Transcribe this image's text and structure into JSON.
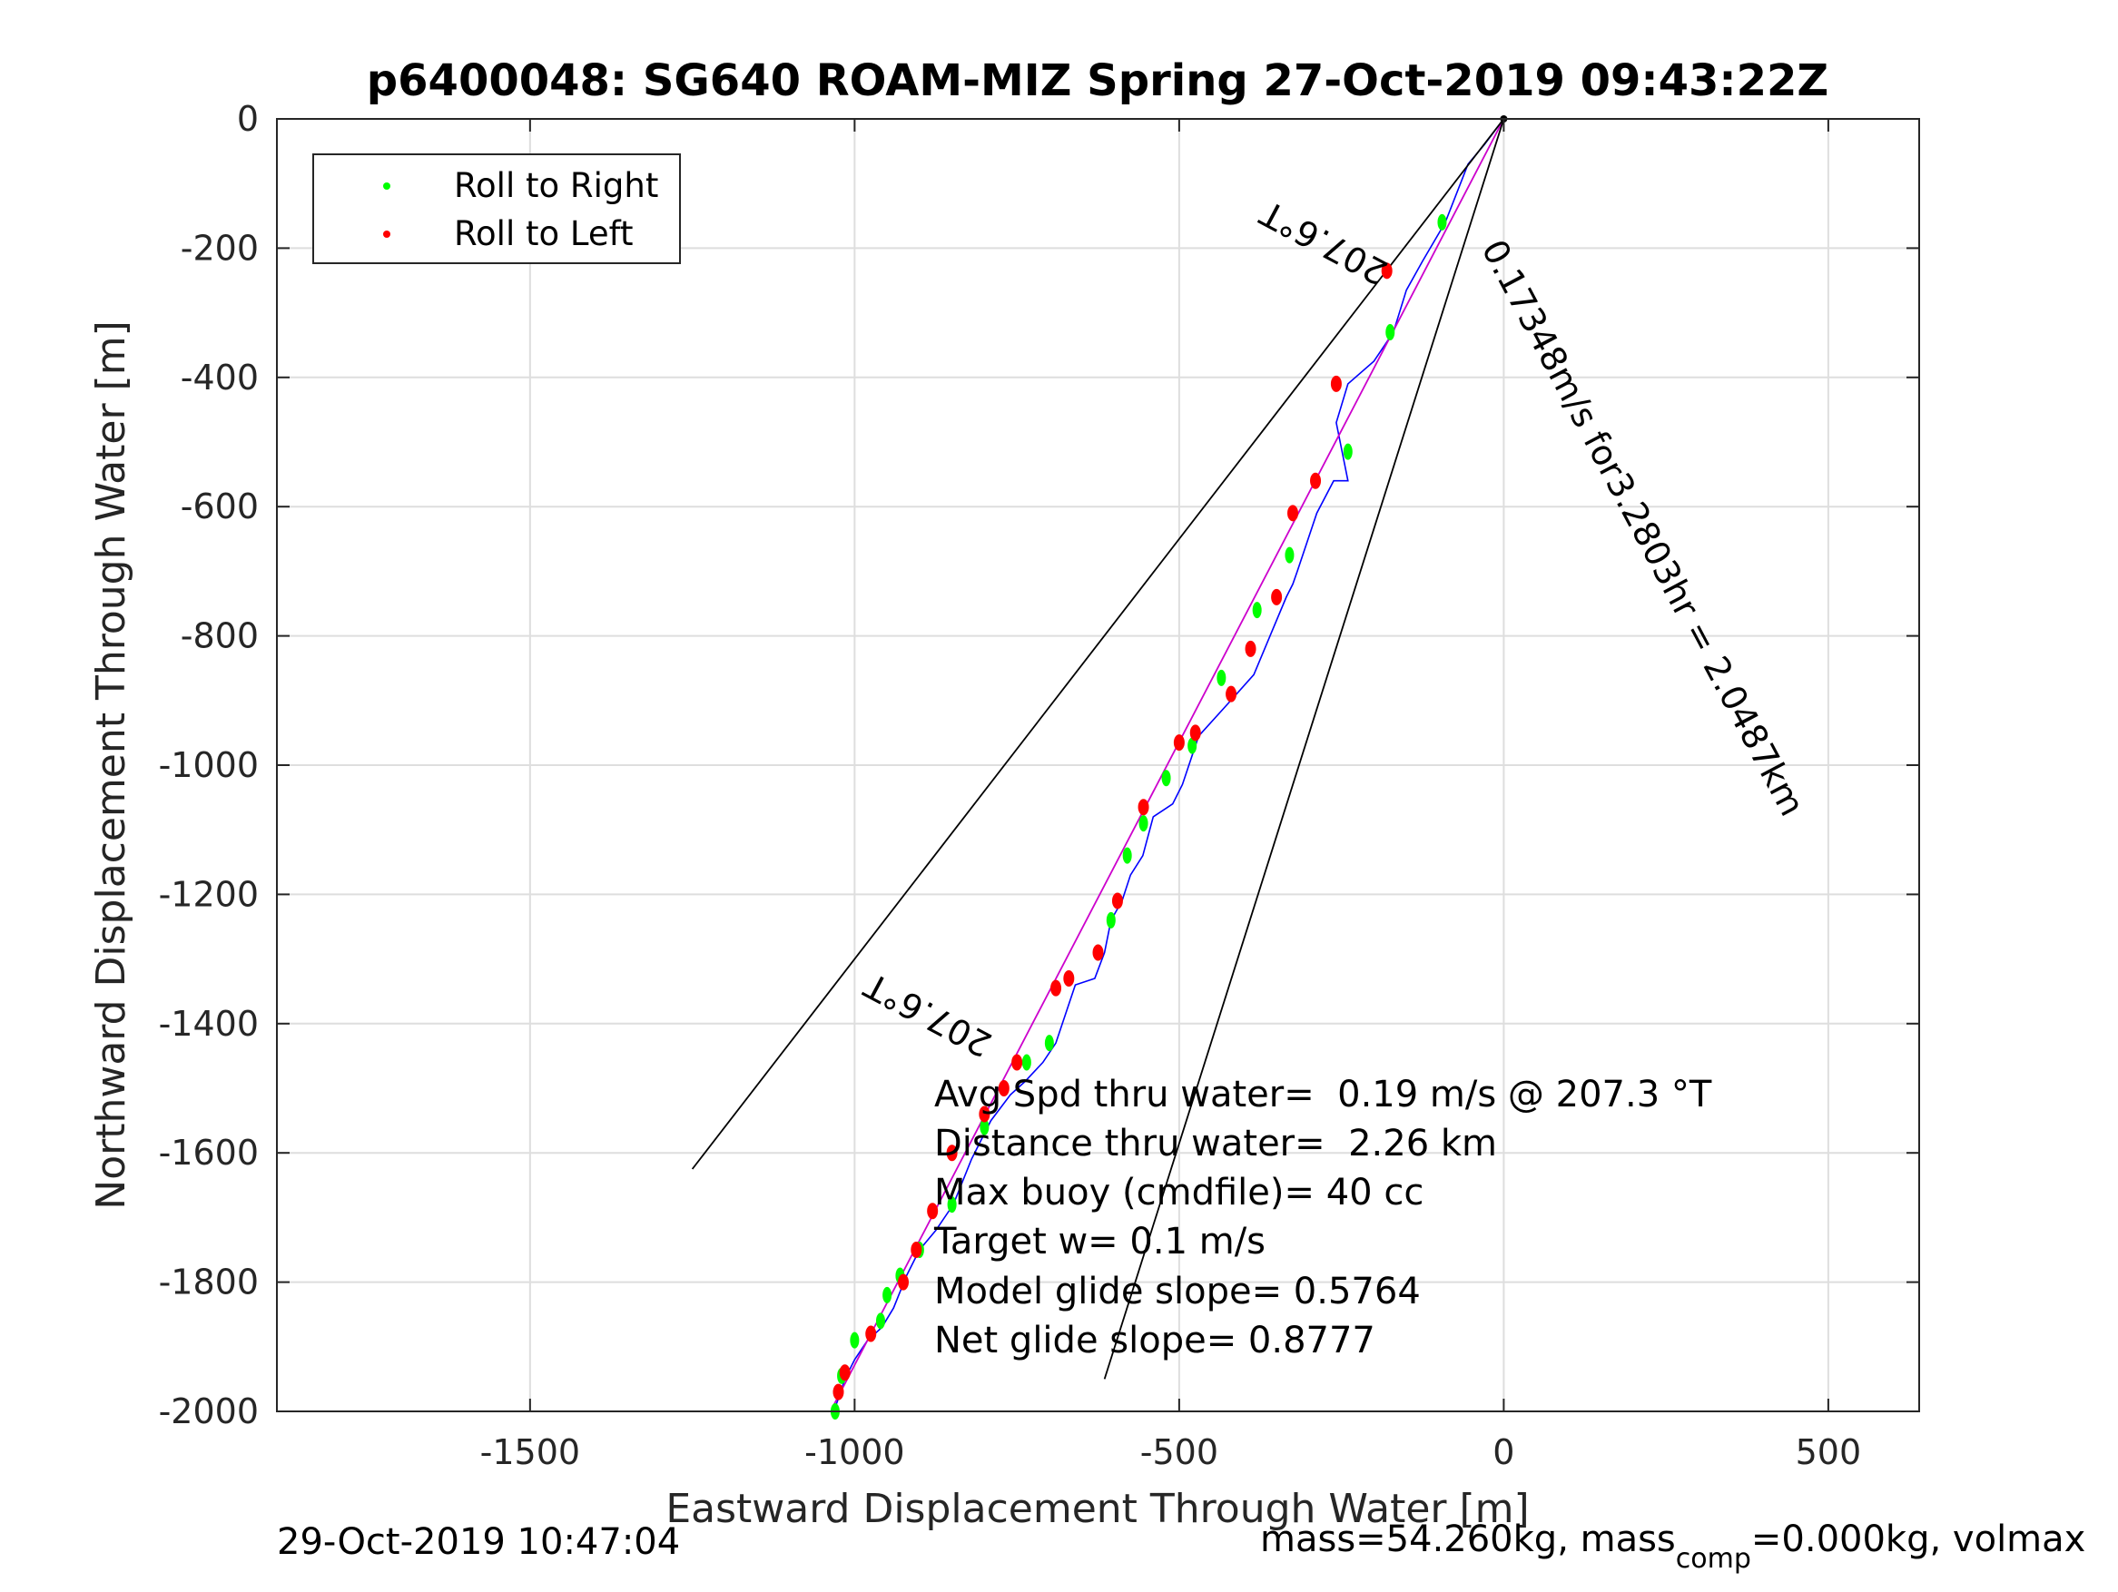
{
  "chart_data": {
    "type": "line",
    "title": "p6400048: SG640 ROAM-MIZ Spring 27-Oct-2019 09:43:22Z",
    "xlabel": "Eastward Displacement Through Water [m]",
    "ylabel": "Northward Displacement Through Water [m]",
    "xlim": [
      -1890,
      640
    ],
    "ylim": [
      -2000,
      0
    ],
    "xticks": [
      -1500,
      -1000,
      -500,
      0,
      500
    ],
    "yticks": [
      0,
      -200,
      -400,
      -600,
      -800,
      -1000,
      -1200,
      -1400,
      -1600,
      -1800,
      -2000
    ],
    "xtick_labels": [
      "-1500",
      "-1000",
      "-500",
      "0",
      "500"
    ],
    "ytick_labels": [
      "0",
      "-200",
      "-400",
      "-600",
      "-800",
      "-1000",
      "-1200",
      "-1400",
      "-1600",
      "-1800",
      "-2000"
    ],
    "grid": true,
    "legend_position": "top-left",
    "legend": [
      {
        "label": "Roll to Right",
        "color": "#00ff00"
      },
      {
        "label": "Roll to Left",
        "color": "#ff0000"
      }
    ],
    "series": [
      {
        "kind": "track",
        "color": "#0000ff",
        "x": [
          0,
          -30,
          -55,
          -90,
          -125,
          -150,
          -170,
          -200,
          -240,
          -258,
          -250,
          -240,
          -262,
          -288,
          -318,
          -325,
          -335,
          -360,
          -385,
          -425,
          -470,
          -495,
          -510,
          -540,
          -556,
          -575,
          -588,
          -605,
          -615,
          -630,
          -660,
          -690,
          -710,
          -738,
          -760,
          -790,
          -820,
          -848,
          -875,
          -900,
          -920,
          -940,
          -958,
          -980,
          -1000,
          -1015,
          -1025,
          -1032
        ],
        "y": [
          0,
          -40,
          -70,
          -160,
          -220,
          -265,
          -330,
          -375,
          -410,
          -470,
          -510,
          -560,
          -560,
          -610,
          -700,
          -720,
          -740,
          -800,
          -860,
          -905,
          -955,
          -1030,
          -1060,
          -1080,
          -1140,
          -1170,
          -1210,
          -1240,
          -1290,
          -1330,
          -1340,
          -1430,
          -1460,
          -1490,
          -1510,
          -1550,
          -1610,
          -1680,
          -1720,
          -1750,
          -1790,
          -1840,
          -1870,
          -1890,
          -1920,
          -1950,
          -1980,
          -2000
        ]
      },
      {
        "kind": "course",
        "color": "#cc00cc",
        "x": [
          0,
          -1032
        ],
        "y": [
          0,
          -1990
        ]
      },
      {
        "kind": "wedge-left",
        "color": "#000000",
        "x": [
          0,
          -1250
        ],
        "y": [
          0,
          -1625
        ]
      },
      {
        "kind": "wedge-right",
        "color": "#000000",
        "x": [
          0,
          -615
        ],
        "y": [
          0,
          -1950
        ]
      }
    ],
    "roll_right_points": {
      "x": [
        -95,
        -175,
        -240,
        -330,
        -380,
        -435,
        -480,
        -520,
        -555,
        -580,
        -605,
        -625,
        -700,
        -735,
        -800,
        -850,
        -900,
        -930,
        -950,
        -960,
        -1000,
        -1020,
        -1030
      ],
      "y": [
        -160,
        -330,
        -515,
        -675,
        -760,
        -865,
        -970,
        -1020,
        -1090,
        -1140,
        -1240,
        -1290,
        -1430,
        -1460,
        -1560,
        -1680,
        -1750,
        -1790,
        -1820,
        -1860,
        -1890,
        -1945,
        -2000
      ]
    },
    "roll_left_points": {
      "x": [
        -180,
        -258,
        -290,
        -325,
        -350,
        -390,
        -420,
        -475,
        -500,
        -555,
        -595,
        -625,
        -670,
        -690,
        -750,
        -770,
        -800,
        -850,
        -880,
        -905,
        -925,
        -975,
        -1015,
        -1025
      ],
      "y": [
        -235,
        -410,
        -560,
        -610,
        -740,
        -820,
        -890,
        -950,
        -965,
        -1065,
        -1210,
        -1290,
        -1330,
        -1345,
        -1460,
        -1500,
        -1540,
        -1600,
        -1690,
        -1750,
        -1800,
        -1880,
        -1940,
        -1970
      ]
    },
    "annotations": [
      {
        "text": "0.17348m/s for3.2803hr = 2.0487km",
        "x": -35,
        "y": -200,
        "rotate": 62
      },
      {
        "text": "207.6°T",
        "x": -175,
        "y": -225,
        "rotate": 208
      },
      {
        "text": "207.6°T",
        "x": -785,
        "y": -1420,
        "rotate": 208
      }
    ],
    "stats": [
      "Avg Spd thru water=  0.19 m/s @ 207.3 °T",
      "Distance thru water=  2.26 km",
      "Max buoy (cmdfile)= 40 cc",
      "Target w= 0.1 m/s",
      "Model glide slope= 0.5764",
      "Net glide slope= 0.8777"
    ]
  },
  "footer": {
    "timestamp": "29-Oct-2019 10:47:04",
    "mass_prefix": "mass=54.260kg, mass",
    "mass_sub": "comp",
    "mass_suffix": "=0.000kg, volmax"
  }
}
